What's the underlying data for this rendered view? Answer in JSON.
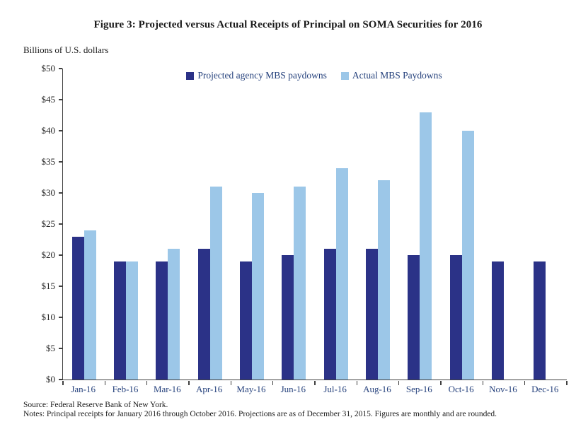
{
  "title": "Figure 3: Projected versus Actual Receipts of Principal on SOMA Securities for 2016",
  "units_label": "Billions of U.S. dollars",
  "source": "Source: Federal Reserve Bank of New York.",
  "notes": "Notes: Principal receipts for January 2016 through October 2016. Projections are as of December 31, 2015. Figures are monthly and are rounded.",
  "colors": {
    "projected_bar": "#2b3287",
    "actual_bar": "#9cc7e8",
    "axis": "#404040",
    "x_label_text": "#25417c",
    "legend_text": "#25417c",
    "y_label_text": "#262626"
  },
  "chart_data": {
    "type": "bar",
    "title": "Figure 3: Projected versus Actual Receipts of Principal on SOMA Securities for 2016",
    "xlabel": "",
    "ylabel": "Billions of U.S. dollars",
    "ylim": [
      0,
      50
    ],
    "ytick_step": 5,
    "ytick_labels": [
      "$0",
      "$5",
      "$10",
      "$15",
      "$20",
      "$25",
      "$30",
      "$35",
      "$40",
      "$45",
      "$50"
    ],
    "grid": false,
    "legend_position": "top-center-inside",
    "categories": [
      "Jan-16",
      "Feb-16",
      "Mar-16",
      "Apr-16",
      "May-16",
      "Jun-16",
      "Jul-16",
      "Aug-16",
      "Sep-16",
      "Oct-16",
      "Nov-16",
      "Dec-16"
    ],
    "series": [
      {
        "name": "Projected agency MBS paydowns",
        "color": "#2b3287",
        "values": [
          23,
          19,
          19,
          21,
          19,
          20,
          21,
          21,
          20,
          20,
          19,
          19
        ]
      },
      {
        "name": "Actual MBS Paydowns",
        "color": "#9cc7e8",
        "values": [
          24,
          19,
          21,
          31,
          30,
          31,
          34,
          32,
          43,
          40,
          null,
          null
        ]
      }
    ]
  }
}
